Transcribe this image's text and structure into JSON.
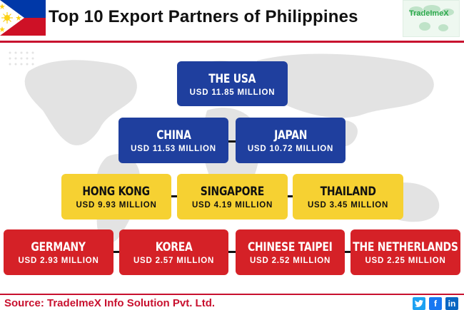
{
  "header": {
    "title": "Top 10 Export Partners of Philippines",
    "logo_text": "TradeImeX"
  },
  "partners": {
    "row1": [
      {
        "name": "THE USA",
        "value": "USD 11.85 MILLION"
      }
    ],
    "row2": [
      {
        "name": "CHINA",
        "value": "USD 11.53 MILLION"
      },
      {
        "name": "JAPAN",
        "value": "USD 10.72 MILLION"
      }
    ],
    "row3": [
      {
        "name": "HONG KONG",
        "value": "USD 9.93 MILLION"
      },
      {
        "name": "SINGAPORE",
        "value": "USD 4.19 MILLION"
      },
      {
        "name": "THAILAND",
        "value": "USD 3.45 MILLION"
      }
    ],
    "row4": [
      {
        "name": "GERMANY",
        "value": "USD 2.93 MILLION"
      },
      {
        "name": "KOREA",
        "value": "USD 2.57 MILLION"
      },
      {
        "name": "CHINESE TAIPEI",
        "value": "USD 2.52 MILLION"
      },
      {
        "name": "THE NETHERLANDS",
        "value": "USD 2.25 MILLION"
      }
    ]
  },
  "footer": {
    "source": "Source: TradeImeX Info Solution Pvt. Ltd."
  },
  "social": {
    "twitter": "twitter-icon",
    "facebook": "facebook-icon",
    "linkedin": "linkedin-icon"
  },
  "colors": {
    "tier1": "#1f3f9e",
    "tier2": "#1f3f9e",
    "tier3": "#f6d132",
    "tier4": "#d52127",
    "accent": "#c8102e"
  }
}
